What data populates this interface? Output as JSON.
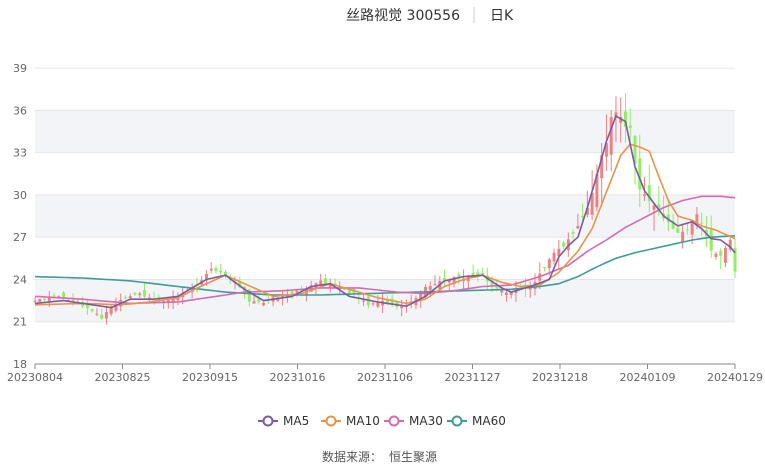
{
  "chart_data": {
    "type": "candlestick",
    "title": "丝路视觉 300556",
    "period": "日K",
    "ylim": [
      18,
      40
    ],
    "y_ticks": [
      18,
      21,
      24,
      27,
      30,
      33,
      36,
      39
    ],
    "x_tick_labels": [
      "20230804",
      "20230825",
      "20230915",
      "20231016",
      "20231106",
      "20231127",
      "20231218",
      "20240109",
      "20240129"
    ],
    "colors": {
      "up": "#f08080",
      "down": "#90ee60",
      "ma5": "#7b5aa6",
      "ma10": "#e8944a",
      "ma30": "#d66bb1",
      "ma60": "#3f9c98"
    },
    "legend": [
      {
        "key": "ma5",
        "label": "MA5"
      },
      {
        "key": "ma10",
        "label": "MA10"
      },
      {
        "key": "ma30",
        "label": "MA30"
      },
      {
        "key": "ma60",
        "label": "MA60"
      }
    ],
    "close_anchors": [
      [
        0,
        22.5
      ],
      [
        5,
        22.8
      ],
      [
        10,
        22.1
      ],
      [
        14,
        21.3
      ],
      [
        18,
        22.6
      ],
      [
        22,
        23.0
      ],
      [
        26,
        22.4
      ],
      [
        30,
        22.8
      ],
      [
        34,
        23.6
      ],
      [
        37,
        24.8
      ],
      [
        40,
        24.3
      ],
      [
        43,
        23.5
      ],
      [
        45,
        22.5
      ],
      [
        48,
        22.4
      ],
      [
        52,
        22.9
      ],
      [
        56,
        23.2
      ],
      [
        60,
        23.9
      ],
      [
        64,
        23.4
      ],
      [
        67,
        22.9
      ],
      [
        70,
        22.2
      ],
      [
        73,
        22.5
      ],
      [
        76,
        22.0
      ],
      [
        79,
        22.4
      ],
      [
        82,
        23.4
      ],
      [
        85,
        23.9
      ],
      [
        88,
        24.2
      ],
      [
        91,
        24.1
      ],
      [
        94,
        24.3
      ],
      [
        96,
        23.5
      ],
      [
        99,
        23.1
      ],
      [
        102,
        23.3
      ],
      [
        105,
        23.8
      ],
      [
        108,
        25.5
      ],
      [
        111,
        26.4
      ],
      [
        113,
        27.2
      ],
      [
        115,
        28.3
      ],
      [
        117,
        30.3
      ],
      [
        119,
        32.6
      ],
      [
        120,
        33.5
      ],
      [
        121,
        35.8
      ],
      [
        123,
        35.6
      ],
      [
        125,
        34.6
      ],
      [
        127,
        30.2
      ],
      [
        129,
        29.6
      ],
      [
        131,
        28.8
      ],
      [
        133,
        28.1
      ],
      [
        135,
        27.4
      ],
      [
        137,
        27.6
      ],
      [
        139,
        28.6
      ],
      [
        140,
        27.9
      ],
      [
        142,
        26.2
      ],
      [
        144,
        25.6
      ],
      [
        146,
        26.7
      ],
      [
        147,
        24.6
      ]
    ],
    "amplitude_anchors": [
      [
        0,
        0.7
      ],
      [
        60,
        0.8
      ],
      [
        104,
        1.0
      ],
      [
        112,
        1.8
      ],
      [
        120,
        3.0
      ],
      [
        126,
        2.6
      ],
      [
        135,
        1.6
      ],
      [
        147,
        1.5
      ]
    ],
    "ma5_anchors": [
      [
        0,
        22.3
      ],
      [
        6,
        22.5
      ],
      [
        12,
        22.2
      ],
      [
        16,
        22.0
      ],
      [
        20,
        22.6
      ],
      [
        25,
        22.6
      ],
      [
        30,
        22.8
      ],
      [
        36,
        24.0
      ],
      [
        40,
        24.3
      ],
      [
        44,
        23.3
      ],
      [
        48,
        22.5
      ],
      [
        54,
        22.8
      ],
      [
        58,
        23.5
      ],
      [
        62,
        23.7
      ],
      [
        66,
        22.8
      ],
      [
        72,
        22.4
      ],
      [
        78,
        22.1
      ],
      [
        82,
        22.8
      ],
      [
        86,
        23.9
      ],
      [
        90,
        24.2
      ],
      [
        94,
        24.3
      ],
      [
        98,
        23.4
      ],
      [
        100,
        23.1
      ],
      [
        104,
        23.5
      ],
      [
        108,
        24.0
      ],
      [
        110,
        25.6
      ],
      [
        112,
        26.4
      ],
      [
        114,
        27.0
      ],
      [
        116,
        29.1
      ],
      [
        118,
        31.4
      ],
      [
        120,
        33.8
      ],
      [
        122,
        35.6
      ],
      [
        124,
        35.2
      ],
      [
        126,
        32.0
      ],
      [
        128,
        30.3
      ],
      [
        130,
        29.4
      ],
      [
        132,
        28.5
      ],
      [
        135,
        27.8
      ],
      [
        138,
        28.1
      ],
      [
        140,
        27.6
      ],
      [
        142,
        26.9
      ],
      [
        144,
        26.8
      ],
      [
        146,
        26.3
      ],
      [
        147,
        25.9
      ]
    ],
    "ma10_anchors": [
      [
        0,
        22.2
      ],
      [
        10,
        22.3
      ],
      [
        18,
        22.2
      ],
      [
        24,
        22.4
      ],
      [
        30,
        22.7
      ],
      [
        36,
        23.7
      ],
      [
        40,
        24.3
      ],
      [
        44,
        23.7
      ],
      [
        50,
        22.8
      ],
      [
        56,
        23.0
      ],
      [
        62,
        23.7
      ],
      [
        66,
        23.3
      ],
      [
        72,
        22.7
      ],
      [
        78,
        22.3
      ],
      [
        82,
        22.6
      ],
      [
        86,
        23.5
      ],
      [
        90,
        24.0
      ],
      [
        94,
        24.3
      ],
      [
        98,
        23.8
      ],
      [
        102,
        23.5
      ],
      [
        106,
        23.6
      ],
      [
        110,
        24.5
      ],
      [
        114,
        26.0
      ],
      [
        117,
        27.6
      ],
      [
        120,
        30.2
      ],
      [
        123,
        32.8
      ],
      [
        125,
        33.6
      ],
      [
        127,
        33.4
      ],
      [
        129,
        33.1
      ],
      [
        131,
        31.3
      ],
      [
        133,
        29.6
      ],
      [
        135,
        28.5
      ],
      [
        138,
        28.2
      ],
      [
        140,
        27.8
      ],
      [
        143,
        27.5
      ],
      [
        147,
        26.9
      ]
    ],
    "ma30_anchors": [
      [
        0,
        22.8
      ],
      [
        10,
        22.6
      ],
      [
        20,
        22.3
      ],
      [
        30,
        22.4
      ],
      [
        38,
        22.8
      ],
      [
        44,
        23.1
      ],
      [
        52,
        23.2
      ],
      [
        60,
        23.4
      ],
      [
        68,
        23.4
      ],
      [
        76,
        23.1
      ],
      [
        82,
        23.0
      ],
      [
        88,
        23.2
      ],
      [
        94,
        23.5
      ],
      [
        100,
        23.6
      ],
      [
        106,
        24.2
      ],
      [
        112,
        25.0
      ],
      [
        116,
        26.0
      ],
      [
        120,
        26.8
      ],
      [
        124,
        27.7
      ],
      [
        128,
        28.4
      ],
      [
        132,
        29.1
      ],
      [
        136,
        29.6
      ],
      [
        140,
        29.9
      ],
      [
        144,
        29.9
      ],
      [
        147,
        29.8
      ]
    ],
    "ma60_anchors": [
      [
        0,
        24.2
      ],
      [
        10,
        24.1
      ],
      [
        20,
        23.9
      ],
      [
        30,
        23.5
      ],
      [
        40,
        23.1
      ],
      [
        50,
        22.9
      ],
      [
        60,
        22.9
      ],
      [
        70,
        23.0
      ],
      [
        80,
        23.1
      ],
      [
        90,
        23.2
      ],
      [
        100,
        23.3
      ],
      [
        106,
        23.5
      ],
      [
        110,
        23.7
      ],
      [
        114,
        24.2
      ],
      [
        118,
        24.9
      ],
      [
        122,
        25.5
      ],
      [
        126,
        25.9
      ],
      [
        130,
        26.2
      ],
      [
        134,
        26.5
      ],
      [
        138,
        26.8
      ],
      [
        142,
        27.0
      ],
      [
        147,
        27.1
      ]
    ],
    "n_bars": 148
  },
  "footer": {
    "source_label": "数据来源：",
    "source_value": "恒生聚源"
  }
}
